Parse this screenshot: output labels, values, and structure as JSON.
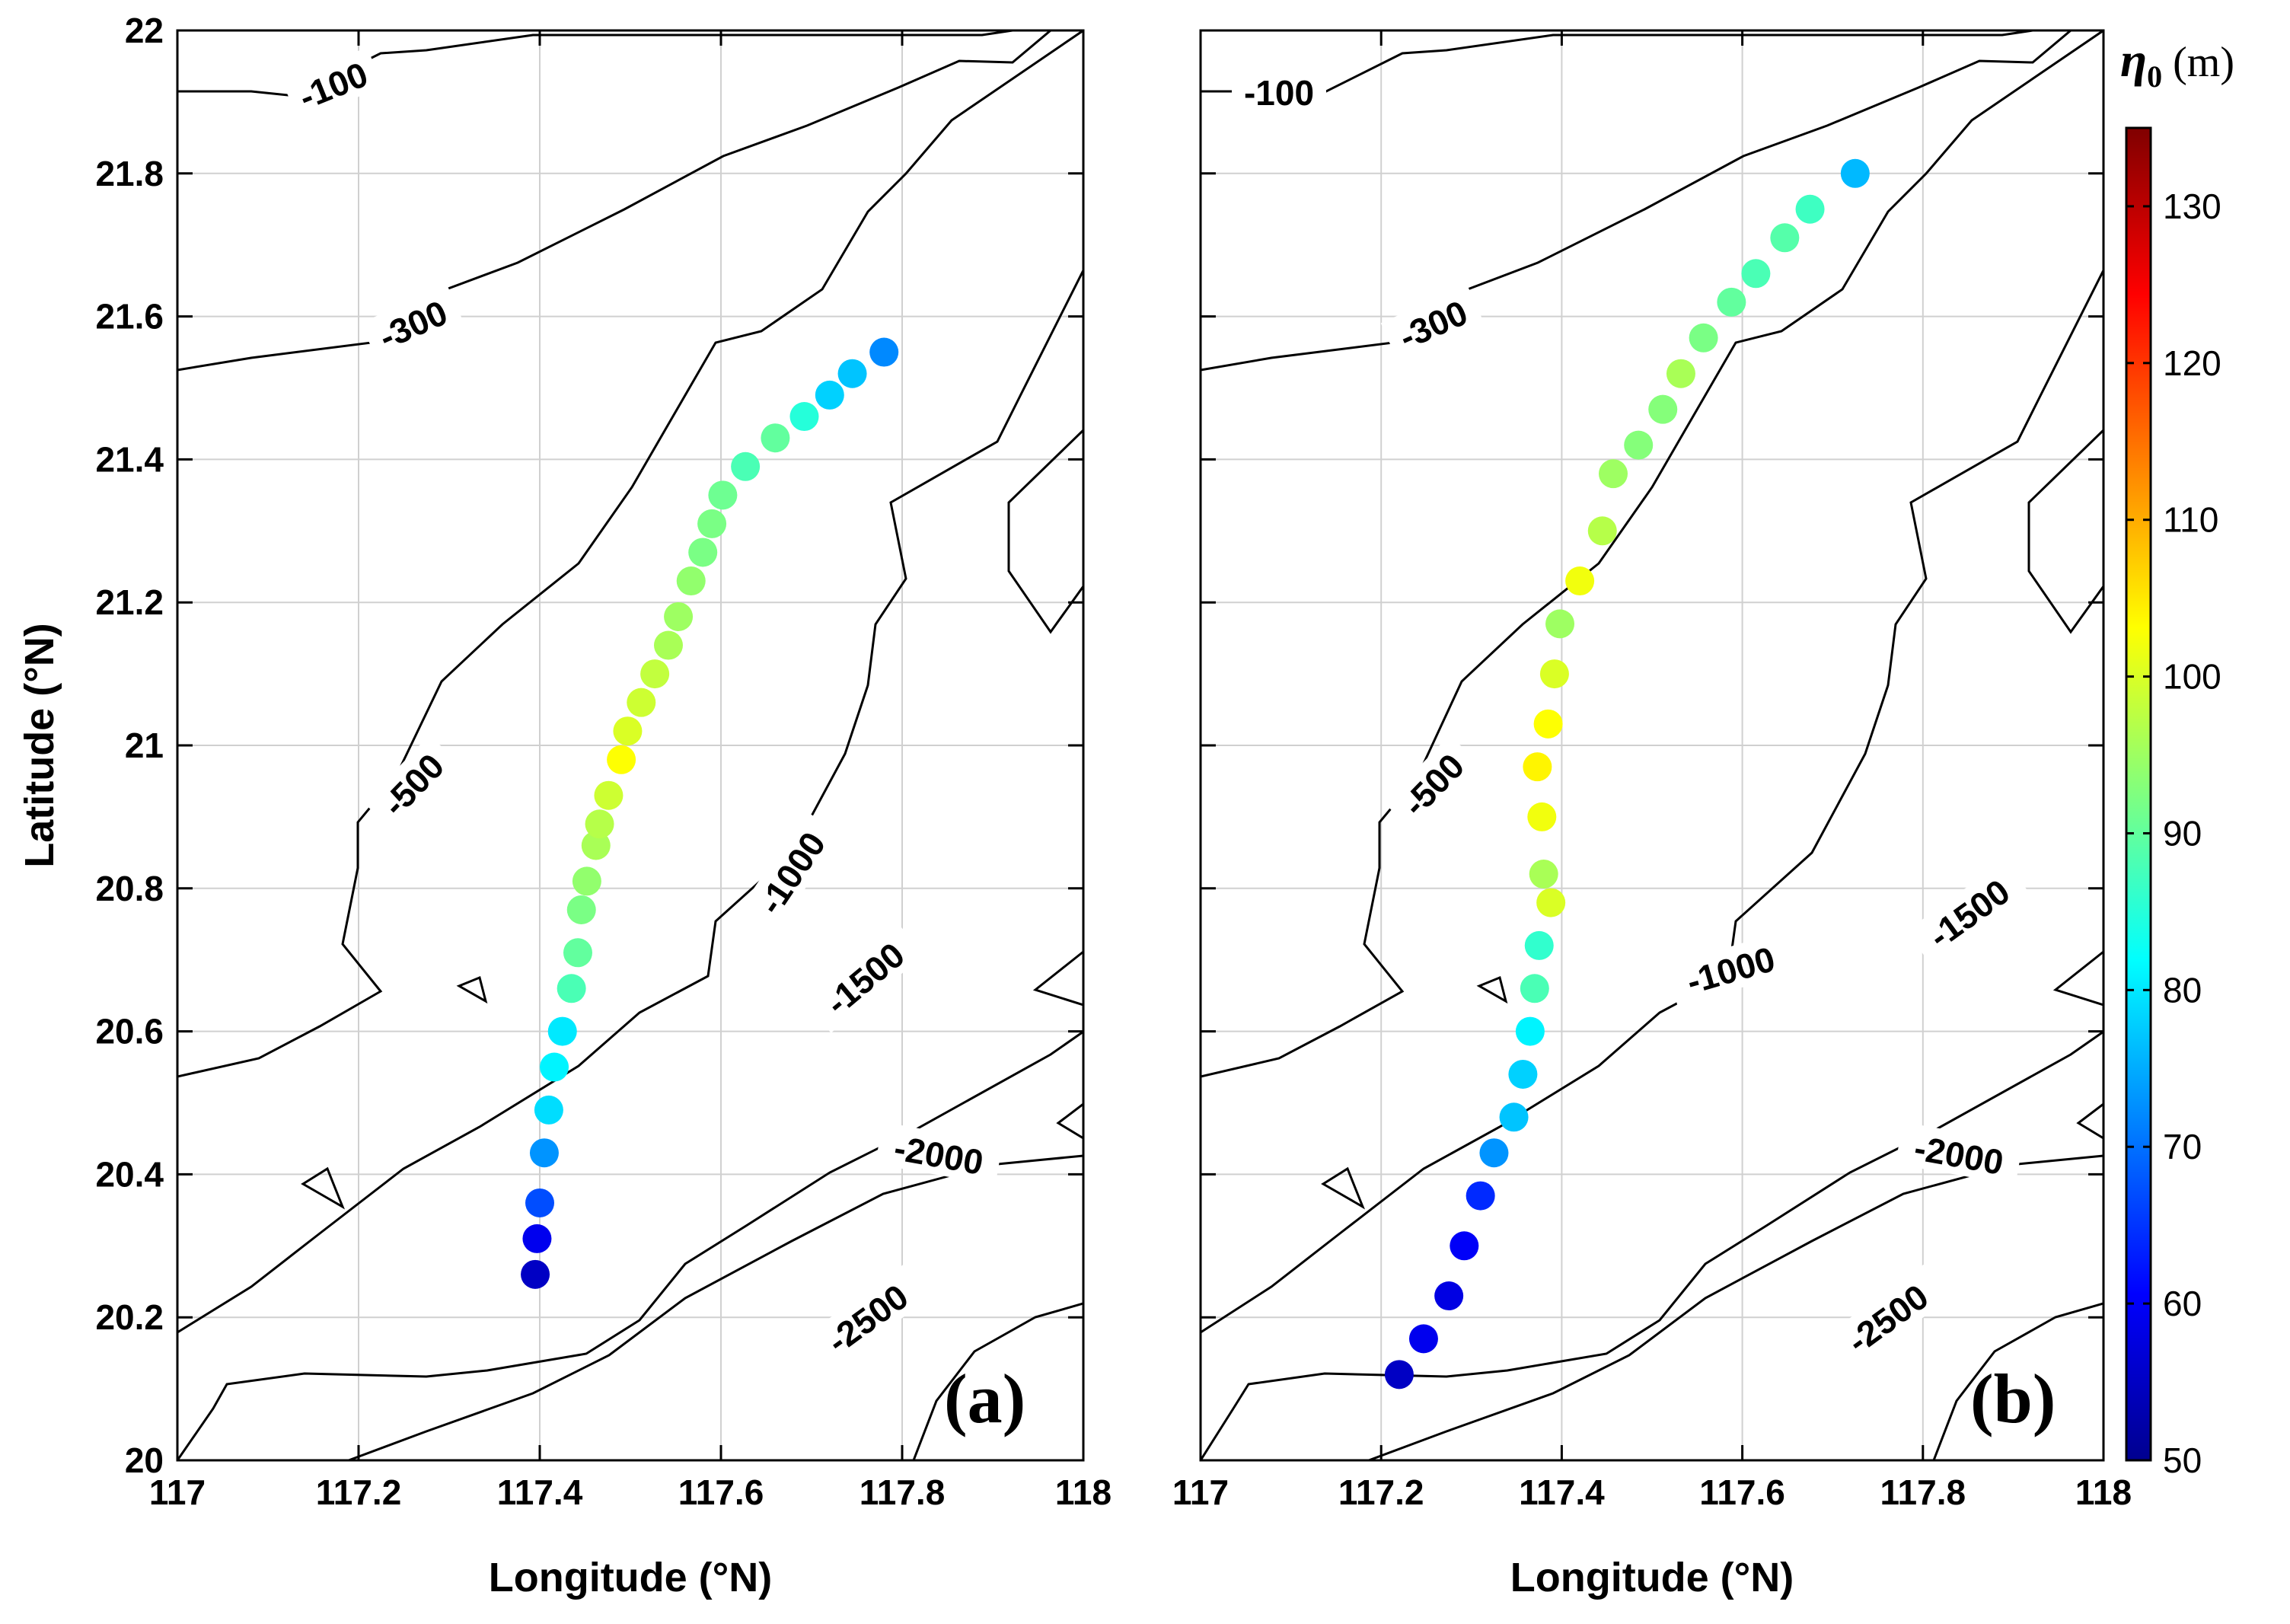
{
  "chart_data": [
    {
      "type": "scatter",
      "panel_label": "(a)",
      "xlabel": "Longitude (°N)",
      "ylabel": "Latitude (°N)",
      "xlim": [
        117,
        118
      ],
      "ylim": [
        20,
        22
      ],
      "xticks": [
        "117",
        "117.2",
        "117.4",
        "117.6",
        "117.8",
        "118"
      ],
      "yticks": [
        "20",
        "20.2",
        "20.4",
        "20.6",
        "20.8",
        "21",
        "21.2",
        "21.4",
        "21.6",
        "21.8",
        "22"
      ],
      "grid": true,
      "contour_labels": [
        "-100",
        "-300",
        "-500",
        "-1000",
        "-1500",
        "-2000",
        "-2500"
      ],
      "points": [
        {
          "lon": 117.395,
          "lat": 20.26,
          "eta0": 55
        },
        {
          "lon": 117.397,
          "lat": 20.31,
          "eta0": 59
        },
        {
          "lon": 117.4,
          "lat": 20.36,
          "eta0": 67
        },
        {
          "lon": 117.405,
          "lat": 20.43,
          "eta0": 73
        },
        {
          "lon": 117.41,
          "lat": 20.49,
          "eta0": 79
        },
        {
          "lon": 117.416,
          "lat": 20.55,
          "eta0": 81
        },
        {
          "lon": 117.425,
          "lat": 20.6,
          "eta0": 80
        },
        {
          "lon": 117.435,
          "lat": 20.66,
          "eta0": 88
        },
        {
          "lon": 117.442,
          "lat": 20.71,
          "eta0": 90
        },
        {
          "lon": 117.446,
          "lat": 20.77,
          "eta0": 92
        },
        {
          "lon": 117.452,
          "lat": 20.81,
          "eta0": 94
        },
        {
          "lon": 117.462,
          "lat": 20.86,
          "eta0": 96
        },
        {
          "lon": 117.466,
          "lat": 20.89,
          "eta0": 97
        },
        {
          "lon": 117.476,
          "lat": 20.93,
          "eta0": 99
        },
        {
          "lon": 117.49,
          "lat": 20.98,
          "eta0": 103
        },
        {
          "lon": 117.497,
          "lat": 21.02,
          "eta0": 100
        },
        {
          "lon": 117.512,
          "lat": 21.06,
          "eta0": 99
        },
        {
          "lon": 117.527,
          "lat": 21.1,
          "eta0": 98
        },
        {
          "lon": 117.542,
          "lat": 21.14,
          "eta0": 96
        },
        {
          "lon": 117.553,
          "lat": 21.18,
          "eta0": 95
        },
        {
          "lon": 117.567,
          "lat": 21.23,
          "eta0": 94
        },
        {
          "lon": 117.58,
          "lat": 21.27,
          "eta0": 92
        },
        {
          "lon": 117.59,
          "lat": 21.31,
          "eta0": 92
        },
        {
          "lon": 117.602,
          "lat": 21.35,
          "eta0": 91
        },
        {
          "lon": 117.627,
          "lat": 21.39,
          "eta0": 88
        },
        {
          "lon": 117.66,
          "lat": 21.43,
          "eta0": 90
        },
        {
          "lon": 117.692,
          "lat": 21.46,
          "eta0": 85
        },
        {
          "lon": 117.72,
          "lat": 21.49,
          "eta0": 78
        },
        {
          "lon": 117.745,
          "lat": 21.52,
          "eta0": 77
        },
        {
          "lon": 117.78,
          "lat": 21.55,
          "eta0": 72
        }
      ]
    },
    {
      "type": "scatter",
      "panel_label": "(b)",
      "xlabel": "Longitude (°N)",
      "ylabel": "",
      "xlim": [
        117,
        118
      ],
      "ylim": [
        20,
        22
      ],
      "xticks": [
        "117",
        "117.2",
        "117.4",
        "117.6",
        "117.8",
        "118"
      ],
      "yticks": [],
      "grid": true,
      "contour_labels": [
        "-100",
        "-300",
        "-500",
        "-1000",
        "-1500",
        "-2000",
        "-2500"
      ],
      "points": [
        {
          "lon": 117.22,
          "lat": 20.12,
          "eta0": 55
        },
        {
          "lon": 117.247,
          "lat": 20.17,
          "eta0": 59
        },
        {
          "lon": 117.275,
          "lat": 20.23,
          "eta0": 58
        },
        {
          "lon": 117.292,
          "lat": 20.3,
          "eta0": 60
        },
        {
          "lon": 117.31,
          "lat": 20.37,
          "eta0": 64
        },
        {
          "lon": 117.325,
          "lat": 20.43,
          "eta0": 73
        },
        {
          "lon": 117.347,
          "lat": 20.48,
          "eta0": 77
        },
        {
          "lon": 117.357,
          "lat": 20.54,
          "eta0": 78
        },
        {
          "lon": 117.365,
          "lat": 20.6,
          "eta0": 81
        },
        {
          "lon": 117.37,
          "lat": 20.66,
          "eta0": 88
        },
        {
          "lon": 117.375,
          "lat": 20.72,
          "eta0": 86
        },
        {
          "lon": 117.388,
          "lat": 20.78,
          "eta0": 100
        },
        {
          "lon": 117.38,
          "lat": 20.82,
          "eta0": 96
        },
        {
          "lon": 117.378,
          "lat": 20.9,
          "eta0": 102
        },
        {
          "lon": 117.373,
          "lat": 20.97,
          "eta0": 104
        },
        {
          "lon": 117.385,
          "lat": 21.03,
          "eta0": 103
        },
        {
          "lon": 117.392,
          "lat": 21.1,
          "eta0": 100
        },
        {
          "lon": 117.398,
          "lat": 21.17,
          "eta0": 95
        },
        {
          "lon": 117.42,
          "lat": 21.23,
          "eta0": 102
        },
        {
          "lon": 117.445,
          "lat": 21.3,
          "eta0": 97
        },
        {
          "lon": 117.457,
          "lat": 21.38,
          "eta0": 95
        },
        {
          "lon": 117.485,
          "lat": 21.42,
          "eta0": 93
        },
        {
          "lon": 117.512,
          "lat": 21.47,
          "eta0": 93
        },
        {
          "lon": 117.532,
          "lat": 21.52,
          "eta0": 96
        },
        {
          "lon": 117.557,
          "lat": 21.57,
          "eta0": 92
        },
        {
          "lon": 117.588,
          "lat": 21.62,
          "eta0": 90
        },
        {
          "lon": 117.615,
          "lat": 21.66,
          "eta0": 88
        },
        {
          "lon": 117.647,
          "lat": 21.71,
          "eta0": 89
        },
        {
          "lon": 117.675,
          "lat": 21.75,
          "eta0": 87
        },
        {
          "lon": 117.725,
          "lat": 21.8,
          "eta0": 76
        }
      ]
    }
  ],
  "colorbar": {
    "title_symbol": "η",
    "title_subscript": "0",
    "title_unit": "(m)",
    "range": [
      50,
      135
    ],
    "ticks": [
      "50",
      "60",
      "70",
      "80",
      "90",
      "100",
      "110",
      "120",
      "130"
    ],
    "colormap": "jet"
  }
}
